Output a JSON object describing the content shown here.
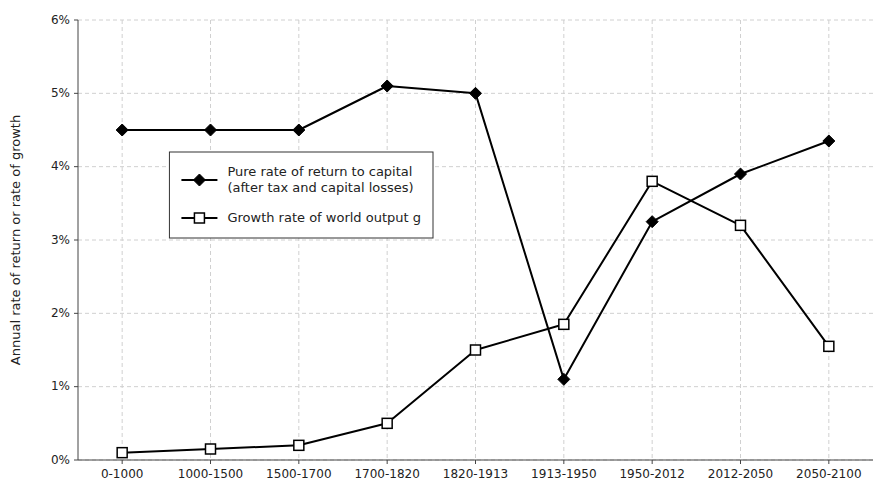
{
  "chart_data": {
    "type": "line",
    "categories": [
      "0-1000",
      "1000-1500",
      "1500-1700",
      "1700-1820",
      "1820-1913",
      "1913-1950",
      "1950-2012",
      "2012-2050",
      "2050-2100"
    ],
    "series": [
      {
        "name": "Pure rate of return to capital\n(after tax and capital losses)",
        "color": "#000000",
        "marker": "diamond",
        "values": [
          4.5,
          4.5,
          4.5,
          5.1,
          5.0,
          1.1,
          3.25,
          3.9,
          4.35
        ]
      },
      {
        "name": "Growth rate of world output g",
        "color": "#000000",
        "marker": "open-square",
        "values": [
          0.1,
          0.15,
          0.2,
          0.5,
          1.5,
          1.85,
          3.8,
          3.2,
          1.55
        ]
      }
    ],
    "ylabel": "Annual rate of return or rate of growth",
    "ylim": [
      0,
      6
    ],
    "yticks": [
      {
        "value": 0,
        "label": "0%"
      },
      {
        "value": 1,
        "label": "1%"
      },
      {
        "value": 2,
        "label": "2%"
      },
      {
        "value": 3,
        "label": "3%"
      },
      {
        "value": 4,
        "label": "4%"
      },
      {
        "value": 5,
        "label": "5%"
      },
      {
        "value": 6,
        "label": "6%"
      }
    ],
    "grid": true,
    "legend": "upper left"
  }
}
